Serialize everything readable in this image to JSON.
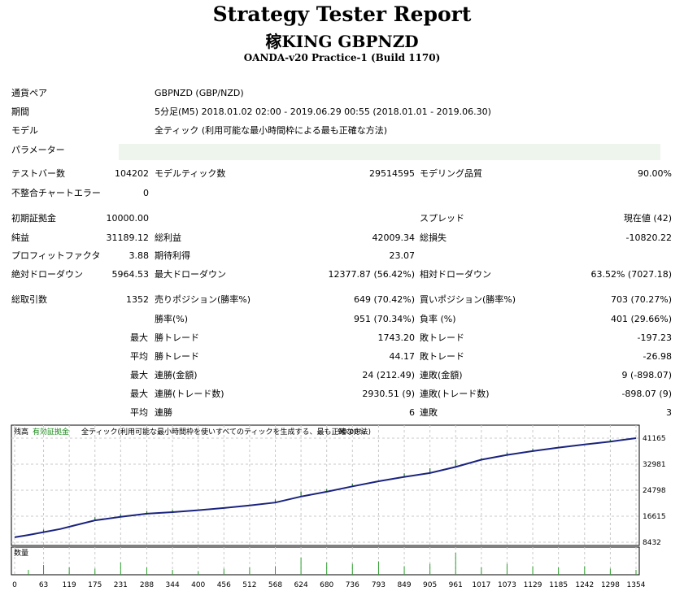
{
  "header": {
    "title": "Strategy Tester Report",
    "subtitle": "稼KING GBPNZD",
    "build": "OANDA-v20 Practice-1 (Build 1170)"
  },
  "info": {
    "pair_label": "通貨ペア",
    "pair_value": "GBPNZD (GBP/NZD)",
    "period_label": "期間",
    "period_value": "5分足(M5) 2018.01.02 02:00 - 2019.06.29 00:55 (2018.01.01 - 2019.06.30)",
    "model_label": "モデル",
    "model_value": "全ティック (利用可能な最小時間枠による最も正確な方法)",
    "params_label": "パラメーター"
  },
  "stats": {
    "bars_label": "テストバー数",
    "bars_value": "104202",
    "ticks_label": "モデルティック数",
    "ticks_value": "29514595",
    "quality_label": "モデリング品質",
    "quality_value": "90.00%",
    "mismatch_label": "不整合チャートエラー",
    "mismatch_value": "0",
    "deposit_label": "初期証拠金",
    "deposit_value": "10000.00",
    "spread_label": "スプレッド",
    "spread_value": "現在値 (42)",
    "net_label": "純益",
    "net_value": "31189.12",
    "gross_profit_label": "総利益",
    "gross_profit_value": "42009.34",
    "gross_loss_label": "総損失",
    "gross_loss_value": "-10820.22",
    "pf_label": "プロフィットファクタ",
    "pf_value": "3.88",
    "expected_label": "期待利得",
    "expected_value": "23.07",
    "abs_dd_label": "絶対ドローダウン",
    "abs_dd_value": "5964.53",
    "max_dd_label": "最大ドローダウン",
    "max_dd_value": "12377.87 (56.42%)",
    "rel_dd_label": "相対ドローダウン",
    "rel_dd_value": "63.52% (7027.18)",
    "total_trades_label": "総取引数",
    "total_trades_value": "1352",
    "short_label": "売りポジション(勝率%)",
    "short_value": "649 (70.42%)",
    "long_label": "買いポジション(勝率%)",
    "long_value": "703 (70.27%)",
    "win_pct_label": "勝率(%)",
    "win_pct_value": "951 (70.34%)",
    "loss_pct_label": "負率 (%)",
    "loss_pct_value": "401 (29.66%)",
    "max_label": "最大",
    "avg_label": "平均",
    "largest_win_label": "勝トレード",
    "largest_win_value": "1743.20",
    "largest_loss_label": "敗トレード",
    "largest_loss_value": "-197.23",
    "avg_win_label": "勝トレード",
    "avg_win_value": "44.17",
    "avg_loss_label": "敗トレード",
    "avg_loss_value": "-26.98",
    "max_consec_win_label": "連勝(金額)",
    "max_consec_win_value": "24 (212.49)",
    "max_consec_loss_label": "連敗(金額)",
    "max_consec_loss_value": "9 (-898.07)",
    "max_consec_profit_label": "連勝(トレード数)",
    "max_consec_profit_value": "2930.51 (9)",
    "max_consec_lossamt_label": "連敗(トレード数)",
    "max_consec_lossamt_value": "-898.07 (9)",
    "avg_consec_win_label": "連勝",
    "avg_consec_win_value": "6",
    "avg_consec_loss_label": "連敗",
    "avg_consec_loss_value": "3"
  },
  "chart_data": {
    "type": "line",
    "legend_balance": "残高",
    "legend_equity": "有効証拠金",
    "legend_model": "全ティック(利用可能な最小時間枠を使いすべてのティックを生成する、最も正確な方法)",
    "legend_quality": "90.00%",
    "lot_label": "数量",
    "y_ticks": [
      "41165",
      "32981",
      "24798",
      "16615",
      "8432"
    ],
    "x_ticks": [
      "0",
      "63",
      "119",
      "175",
      "231",
      "288",
      "344",
      "400",
      "456",
      "512",
      "568",
      "624",
      "680",
      "736",
      "793",
      "849",
      "905",
      "961",
      "1017",
      "1073",
      "1129",
      "1185",
      "1242",
      "1298",
      "1354"
    ],
    "ylim": [
      8432,
      41165
    ],
    "xlim": [
      0,
      1354
    ],
    "colors": {
      "balance": "#1a237e",
      "equity": "#2e7d32",
      "volume": "#2e9e2e",
      "grid": "#c8c8c8"
    },
    "balance": [
      [
        0,
        10000
      ],
      [
        30,
        10700
      ],
      [
        63,
        11600
      ],
      [
        100,
        12600
      ],
      [
        130,
        13700
      ],
      [
        175,
        15300
      ],
      [
        231,
        16400
      ],
      [
        288,
        17400
      ],
      [
        344,
        17900
      ],
      [
        400,
        18500
      ],
      [
        456,
        19200
      ],
      [
        512,
        20000
      ],
      [
        568,
        20900
      ],
      [
        624,
        22800
      ],
      [
        680,
        24300
      ],
      [
        736,
        26000
      ],
      [
        793,
        27600
      ],
      [
        849,
        29000
      ],
      [
        905,
        30200
      ],
      [
        961,
        32100
      ],
      [
        1017,
        34400
      ],
      [
        1073,
        35900
      ],
      [
        1129,
        37100
      ],
      [
        1185,
        38200
      ],
      [
        1242,
        39200
      ],
      [
        1298,
        40100
      ],
      [
        1354,
        41165
      ]
    ],
    "equity_spikes": [
      [
        63,
        12400
      ],
      [
        175,
        16300
      ],
      [
        231,
        17200
      ],
      [
        288,
        18200
      ],
      [
        344,
        18600
      ],
      [
        568,
        21900
      ],
      [
        624,
        24400
      ],
      [
        680,
        25200
      ],
      [
        736,
        26900
      ],
      [
        849,
        30100
      ],
      [
        905,
        31700
      ],
      [
        961,
        34300
      ],
      [
        1017,
        34900
      ],
      [
        1073,
        36700
      ],
      [
        1129,
        37900
      ],
      [
        1298,
        40800
      ]
    ],
    "volume": [
      [
        30,
        0.2
      ],
      [
        63,
        0.4
      ],
      [
        119,
        0.3
      ],
      [
        175,
        0.25
      ],
      [
        231,
        0.5
      ],
      [
        288,
        0.3
      ],
      [
        344,
        0.2
      ],
      [
        400,
        0.15
      ],
      [
        456,
        0.25
      ],
      [
        512,
        0.3
      ],
      [
        568,
        0.35
      ],
      [
        624,
        0.7
      ],
      [
        680,
        0.5
      ],
      [
        736,
        0.45
      ],
      [
        793,
        0.55
      ],
      [
        849,
        0.35
      ],
      [
        905,
        0.45
      ],
      [
        961,
        0.9
      ],
      [
        1017,
        0.3
      ],
      [
        1073,
        0.45
      ],
      [
        1129,
        0.35
      ],
      [
        1185,
        0.3
      ],
      [
        1242,
        0.35
      ],
      [
        1298,
        0.25
      ],
      [
        1354,
        0.2
      ]
    ]
  }
}
